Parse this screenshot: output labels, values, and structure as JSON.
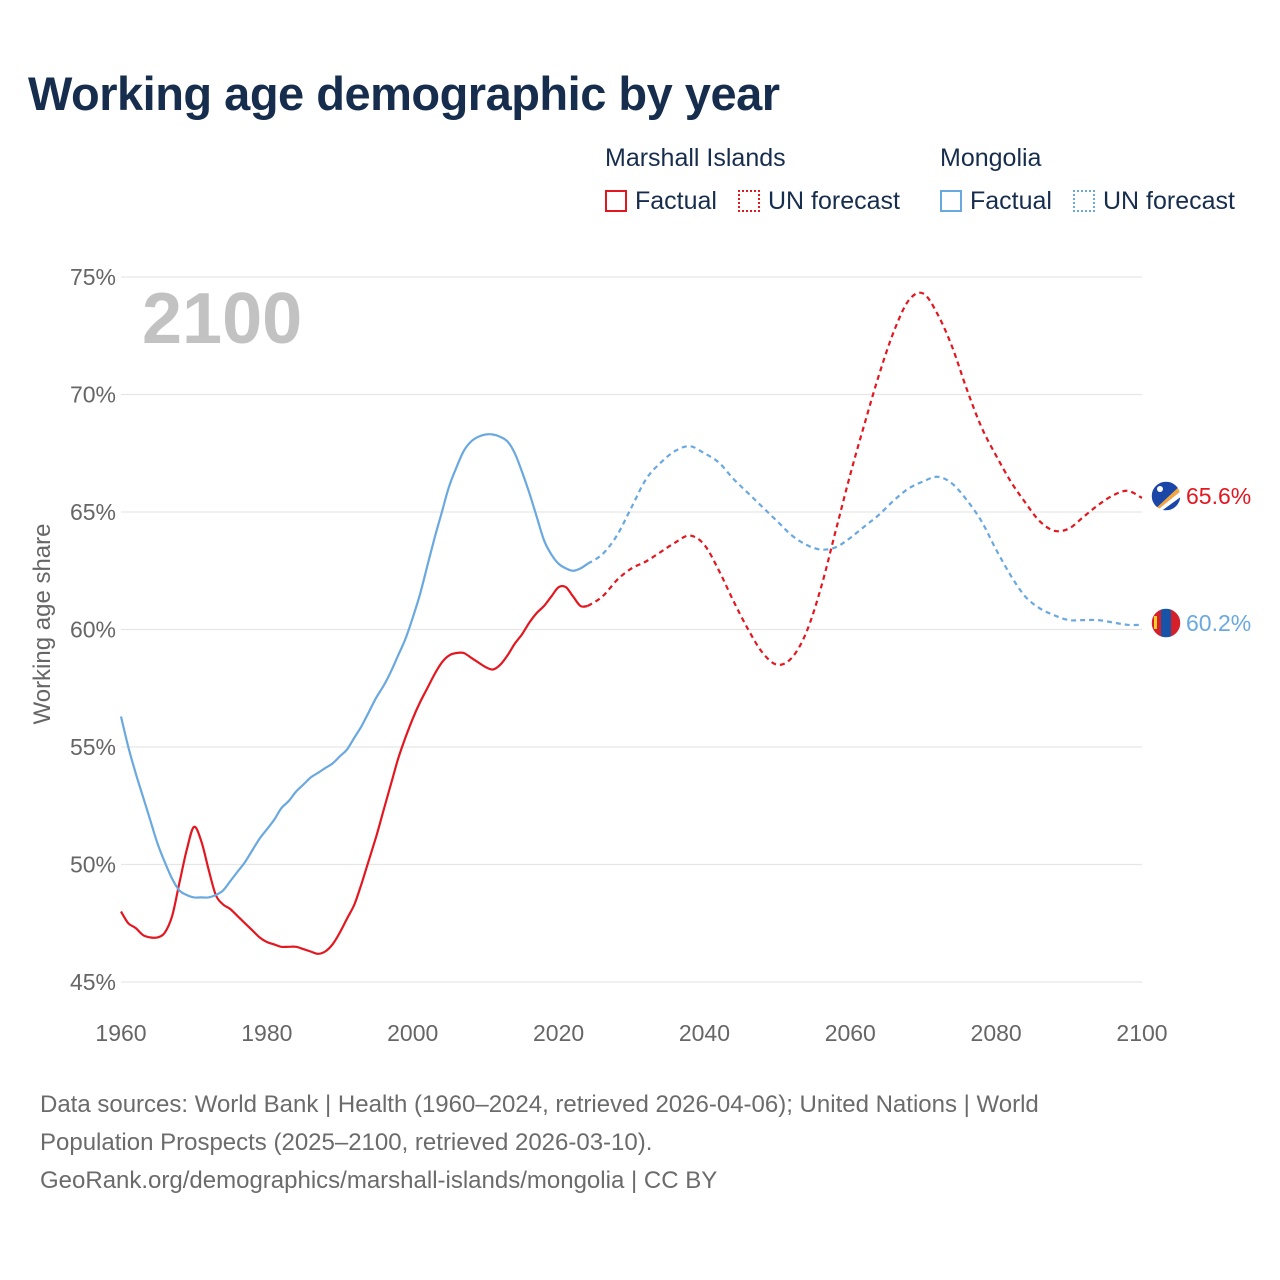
{
  "title": "Working age demographic by year",
  "legend": {
    "groups": [
      {
        "name": "Marshall Islands",
        "color": "#e3171f",
        "factual_label": "Factual",
        "forecast_label": "UN forecast"
      },
      {
        "name": "Mongolia",
        "color": "#6aa8e0",
        "factual_label": "Factual",
        "forecast_label": "UN forecast"
      }
    ]
  },
  "year_watermark": "2100",
  "chart_data": {
    "type": "line",
    "ylabel": "Working age share",
    "xlabel": "",
    "xlim": [
      1960,
      2100
    ],
    "ylim": [
      45,
      75
    ],
    "x_ticks": [
      1960,
      1980,
      2000,
      2020,
      2040,
      2060,
      2080,
      2100
    ],
    "x_tick_labels": [
      "1960",
      "1980",
      "2000",
      "2020",
      "2040",
      "2060",
      "2080",
      "2100"
    ],
    "y_ticks": [
      45,
      50,
      55,
      60,
      65,
      70,
      75
    ],
    "y_tick_labels": [
      "45%",
      "50%",
      "55%",
      "60%",
      "65%",
      "70%",
      "75%"
    ],
    "grid": true,
    "series": [
      {
        "name": "Marshall Islands",
        "color": "#e3171f",
        "end_label": "65.6%",
        "flag_icon": "marshall-islands-flag-icon",
        "factual": {
          "x": [
            1960,
            1961,
            1962,
            1963,
            1964,
            1965,
            1966,
            1967,
            1968,
            1969,
            1970,
            1971,
            1972,
            1973,
            1974,
            1975,
            1976,
            1977,
            1978,
            1979,
            1980,
            1981,
            1982,
            1983,
            1984,
            1985,
            1986,
            1987,
            1988,
            1989,
            1990,
            1991,
            1992,
            1993,
            1994,
            1995,
            1996,
            1997,
            1998,
            1999,
            2000,
            2001,
            2002,
            2003,
            2004,
            2005,
            2006,
            2007,
            2008,
            2009,
            2010,
            2011,
            2012,
            2013,
            2014,
            2015,
            2016,
            2017,
            2018,
            2019,
            2020,
            2021,
            2022,
            2023,
            2024
          ],
          "y": [
            48.0,
            47.5,
            47.3,
            47.0,
            46.9,
            46.9,
            47.1,
            47.8,
            49.2,
            50.6,
            51.6,
            51.0,
            49.8,
            48.7,
            48.3,
            48.1,
            47.8,
            47.5,
            47.2,
            46.9,
            46.7,
            46.6,
            46.5,
            46.5,
            46.5,
            46.4,
            46.3,
            46.2,
            46.3,
            46.6,
            47.1,
            47.7,
            48.3,
            49.2,
            50.2,
            51.2,
            52.3,
            53.4,
            54.5,
            55.4,
            56.2,
            56.9,
            57.5,
            58.1,
            58.6,
            58.9,
            59.0,
            59.0,
            58.8,
            58.6,
            58.4,
            58.3,
            58.5,
            58.9,
            59.4,
            59.8,
            60.3,
            60.7,
            61.0,
            61.4,
            61.8,
            61.8,
            61.4,
            61.0,
            61.0
          ]
        },
        "forecast": {
          "x": [
            2024,
            2026,
            2028,
            2030,
            2032,
            2034,
            2036,
            2038,
            2040,
            2042,
            2044,
            2046,
            2048,
            2050,
            2052,
            2054,
            2056,
            2058,
            2060,
            2062,
            2064,
            2066,
            2068,
            2070,
            2072,
            2074,
            2076,
            2078,
            2080,
            2082,
            2084,
            2086,
            2088,
            2090,
            2092,
            2094,
            2096,
            2098,
            2100
          ],
          "y": [
            61.0,
            61.4,
            62.1,
            62.6,
            62.9,
            63.3,
            63.7,
            64.0,
            63.6,
            62.5,
            61.2,
            60.0,
            59.0,
            58.5,
            58.8,
            59.9,
            61.8,
            64.2,
            66.6,
            68.8,
            70.9,
            72.7,
            74.0,
            74.3,
            73.4,
            72.0,
            70.2,
            68.6,
            67.4,
            66.3,
            65.4,
            64.6,
            64.2,
            64.3,
            64.8,
            65.3,
            65.7,
            65.9,
            65.6
          ]
        }
      },
      {
        "name": "Mongolia",
        "color": "#6aa8e0",
        "end_label": "60.2%",
        "flag_icon": "mongolia-flag-icon",
        "factual": {
          "x": [
            1960,
            1961,
            1962,
            1963,
            1964,
            1965,
            1966,
            1967,
            1968,
            1969,
            1970,
            1971,
            1972,
            1973,
            1974,
            1975,
            1976,
            1977,
            1978,
            1979,
            1980,
            1981,
            1982,
            1983,
            1984,
            1985,
            1986,
            1987,
            1988,
            1989,
            1990,
            1991,
            1992,
            1993,
            1994,
            1995,
            1996,
            1997,
            1998,
            1999,
            2000,
            2001,
            2002,
            2003,
            2004,
            2005,
            2006,
            2007,
            2008,
            2009,
            2010,
            2011,
            2012,
            2013,
            2014,
            2015,
            2016,
            2017,
            2018,
            2019,
            2020,
            2021,
            2022,
            2023,
            2024
          ],
          "y": [
            56.3,
            55.0,
            53.9,
            52.9,
            51.9,
            50.9,
            50.1,
            49.4,
            48.9,
            48.7,
            48.6,
            48.6,
            48.6,
            48.7,
            48.9,
            49.3,
            49.7,
            50.1,
            50.6,
            51.1,
            51.5,
            51.9,
            52.4,
            52.7,
            53.1,
            53.4,
            53.7,
            53.9,
            54.1,
            54.3,
            54.6,
            54.9,
            55.4,
            55.9,
            56.5,
            57.1,
            57.6,
            58.2,
            58.9,
            59.6,
            60.5,
            61.5,
            62.7,
            63.9,
            65.0,
            66.1,
            66.9,
            67.6,
            68.0,
            68.2,
            68.3,
            68.3,
            68.2,
            68.0,
            67.5,
            66.7,
            65.8,
            64.8,
            63.8,
            63.2,
            62.8,
            62.6,
            62.5,
            62.6,
            62.8
          ]
        },
        "forecast": {
          "x": [
            2024,
            2026,
            2028,
            2030,
            2032,
            2034,
            2036,
            2038,
            2040,
            2042,
            2044,
            2046,
            2048,
            2050,
            2052,
            2054,
            2056,
            2058,
            2060,
            2062,
            2064,
            2066,
            2068,
            2070,
            2072,
            2074,
            2076,
            2078,
            2080,
            2082,
            2084,
            2086,
            2088,
            2090,
            2092,
            2094,
            2096,
            2098,
            2100
          ],
          "y": [
            62.8,
            63.2,
            64.0,
            65.2,
            66.4,
            67.1,
            67.6,
            67.8,
            67.5,
            67.1,
            66.4,
            65.8,
            65.2,
            64.6,
            64.0,
            63.6,
            63.4,
            63.5,
            63.9,
            64.4,
            64.9,
            65.5,
            66.0,
            66.3,
            66.5,
            66.2,
            65.5,
            64.6,
            63.4,
            62.3,
            61.4,
            60.9,
            60.6,
            60.4,
            60.4,
            60.4,
            60.3,
            60.2,
            60.2
          ]
        }
      }
    ]
  },
  "footer": {
    "line1": "Data sources: World Bank | Health (1960–2024, retrieved 2026-04-06); United Nations | World",
    "line2": "Population Prospects (2025–2100, retrieved 2026-03-10).",
    "line3": "GeoRank.org/demographics/marshall-islands/mongolia | CC BY"
  }
}
